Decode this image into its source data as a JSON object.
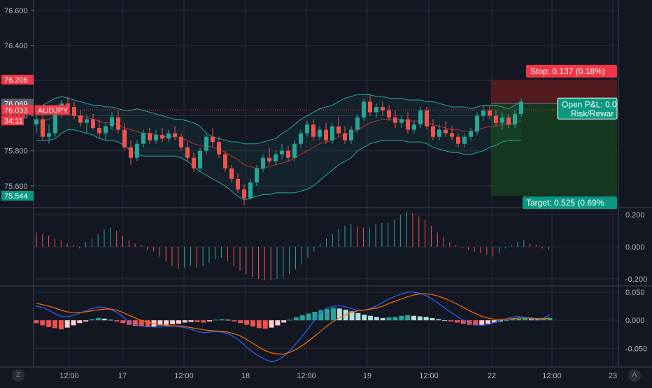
{
  "symbol": "AUDJPY",
  "countdown": "34:11",
  "colors": {
    "background": "#131722",
    "grid": "#2a2e39",
    "up": "#26a69a",
    "down": "#ef5350",
    "bb": "#26a69a",
    "ma": "#b2343a",
    "stop_zone": "#5c1b1f",
    "target_zone": "#163d1e"
  },
  "price_axis": {
    "ticks": [
      "76.600",
      "76.400",
      "76.200",
      "76.000",
      "75.800",
      "75.600"
    ],
    "tick_values": [
      76.6,
      76.4,
      76.2,
      76.0,
      75.8,
      75.6
    ],
    "range": [
      75.48,
      76.66
    ],
    "badges": [
      {
        "label": "76.206",
        "value": 76.206,
        "color": "#f23645"
      },
      {
        "label": "76.069",
        "value": 76.069,
        "color": "#5d606b"
      },
      {
        "label": "76.033",
        "value": 76.033,
        "color": "#f23645"
      },
      {
        "label": "75.544",
        "value": 75.544,
        "color": "#089981"
      }
    ]
  },
  "time_axis": {
    "labels": [
      "12:00",
      "17",
      "12:00",
      "18",
      "12:00",
      "19",
      "12:00",
      "22",
      "12:00",
      "23"
    ]
  },
  "position": {
    "stop_label": "Stop: 0.137 (0.18%)",
    "target_label": "Target: 0.525 (0.69%",
    "pnl_label": "Open P&L: 0.0",
    "rr_label": "Risk/Rewar",
    "entry": 76.069,
    "stop": 76.206,
    "target": 75.544
  },
  "osc1_axis": {
    "ticks": [
      "0.200",
      "0.000",
      "-0.200"
    ],
    "tick_values": [
      0.2,
      0.0,
      -0.2
    ],
    "range": [
      -0.24,
      0.24
    ]
  },
  "osc2_axis": {
    "ticks": [
      "0.050",
      "0.000",
      "-0.050"
    ],
    "tick_values": [
      0.05,
      0.0,
      -0.05
    ],
    "range": [
      -0.082,
      0.06
    ]
  },
  "corner_left": "Z",
  "corner_right": "A",
  "chart_data": [
    {
      "type": "candlestick",
      "symbol": "AUDJPY",
      "xlabel": "",
      "ylabel": "",
      "ylim": [
        75.48,
        76.66
      ],
      "candles": [
        [
          75.95,
          76.02,
          75.9,
          75.98
        ],
        [
          75.98,
          76.01,
          75.86,
          75.88
        ],
        [
          75.88,
          75.95,
          75.84,
          75.9
        ],
        [
          75.9,
          76.04,
          75.88,
          76.02
        ],
        [
          76.02,
          76.09,
          75.99,
          76.07
        ],
        [
          76.07,
          76.11,
          76.02,
          76.05
        ],
        [
          76.05,
          76.08,
          75.98,
          76.0
        ],
        [
          76.0,
          76.03,
          75.94,
          75.96
        ],
        [
          75.96,
          76.0,
          75.9,
          75.98
        ],
        [
          75.98,
          76.01,
          75.92,
          75.93
        ],
        [
          75.93,
          75.98,
          75.87,
          75.9
        ],
        [
          75.9,
          75.96,
          75.86,
          75.94
        ],
        [
          75.94,
          76.02,
          75.92,
          75.99
        ],
        [
          75.99,
          76.03,
          75.9,
          75.92
        ],
        [
          75.92,
          75.96,
          75.8,
          75.82
        ],
        [
          75.82,
          75.86,
          75.72,
          75.76
        ],
        [
          75.76,
          75.86,
          75.74,
          75.84
        ],
        [
          75.84,
          75.92,
          75.82,
          75.9
        ],
        [
          75.9,
          75.93,
          75.84,
          75.86
        ],
        [
          75.86,
          75.92,
          75.84,
          75.89
        ],
        [
          75.89,
          75.93,
          75.85,
          75.87
        ],
        [
          75.87,
          75.92,
          75.85,
          75.9
        ],
        [
          75.9,
          75.94,
          75.86,
          75.88
        ],
        [
          75.88,
          75.9,
          75.8,
          75.82
        ],
        [
          75.82,
          75.85,
          75.74,
          75.76
        ],
        [
          75.76,
          75.79,
          75.68,
          75.7
        ],
        [
          75.7,
          75.82,
          75.68,
          75.8
        ],
        [
          75.8,
          75.9,
          75.78,
          75.88
        ],
        [
          75.88,
          75.93,
          75.82,
          75.85
        ],
        [
          75.85,
          75.88,
          75.76,
          75.78
        ],
        [
          75.78,
          75.8,
          75.68,
          75.7
        ],
        [
          75.7,
          75.72,
          75.62,
          75.64
        ],
        [
          75.64,
          75.67,
          75.56,
          75.58
        ],
        [
          75.58,
          75.61,
          75.49,
          75.53
        ],
        [
          75.53,
          75.64,
          75.52,
          75.62
        ],
        [
          75.62,
          75.72,
          75.6,
          75.7
        ],
        [
          75.7,
          75.78,
          75.68,
          75.76
        ],
        [
          75.76,
          75.82,
          75.72,
          75.74
        ],
        [
          75.74,
          75.8,
          75.72,
          75.78
        ],
        [
          75.78,
          75.84,
          75.75,
          75.8
        ],
        [
          75.8,
          75.83,
          75.74,
          75.76
        ],
        [
          75.76,
          75.86,
          75.74,
          75.84
        ],
        [
          75.84,
          75.92,
          75.82,
          75.9
        ],
        [
          75.9,
          75.97,
          75.88,
          75.95
        ],
        [
          75.95,
          75.98,
          75.86,
          75.88
        ],
        [
          75.88,
          75.94,
          75.86,
          75.92
        ],
        [
          75.92,
          75.96,
          75.84,
          75.86
        ],
        [
          75.86,
          75.96,
          75.84,
          75.94
        ],
        [
          75.94,
          75.99,
          75.88,
          75.9
        ],
        [
          75.9,
          75.94,
          75.84,
          75.86
        ],
        [
          75.86,
          75.94,
          75.84,
          75.92
        ],
        [
          75.92,
          76.01,
          75.9,
          75.99
        ],
        [
          75.99,
          76.1,
          75.97,
          76.08
        ],
        [
          76.08,
          76.12,
          76.0,
          76.02
        ],
        [
          76.02,
          76.07,
          75.99,
          76.05
        ],
        [
          76.05,
          76.08,
          76.0,
          76.03
        ],
        [
          76.03,
          76.06,
          75.97,
          75.99
        ],
        [
          75.99,
          76.03,
          75.93,
          75.96
        ],
        [
          75.96,
          76.0,
          75.93,
          75.98
        ],
        [
          75.98,
          76.02,
          75.9,
          75.92
        ],
        [
          75.92,
          75.97,
          75.9,
          75.95
        ],
        [
          75.95,
          76.05,
          75.93,
          76.03
        ],
        [
          76.03,
          76.05,
          75.92,
          75.94
        ],
        [
          75.94,
          75.98,
          75.86,
          75.88
        ],
        [
          75.88,
          75.95,
          75.86,
          75.92
        ],
        [
          75.92,
          75.97,
          75.88,
          75.9
        ],
        [
          75.9,
          75.94,
          75.86,
          75.88
        ],
        [
          75.88,
          75.9,
          75.82,
          75.84
        ],
        [
          75.84,
          75.9,
          75.82,
          75.88
        ],
        [
          75.88,
          75.93,
          75.86,
          75.91
        ],
        [
          75.91,
          76.02,
          75.89,
          76.0
        ],
        [
          76.0,
          76.06,
          75.97,
          76.03
        ],
        [
          76.03,
          76.06,
          75.98,
          76.0
        ],
        [
          76.0,
          76.03,
          75.94,
          75.96
        ],
        [
          75.96,
          76.02,
          75.92,
          75.99
        ],
        [
          75.99,
          76.01,
          75.93,
          75.95
        ],
        [
          75.95,
          76.03,
          75.93,
          76.01
        ],
        [
          76.01,
          76.1,
          75.99,
          76.08
        ]
      ],
      "bollinger": {
        "upper": [
          76.04,
          76.06,
          76.08,
          76.1,
          76.11,
          76.1,
          76.09,
          76.08,
          76.07,
          76.06,
          76.06,
          76.05,
          76.05,
          76.04,
          76.03,
          76.03,
          76.04,
          76.03,
          76.02,
          76.01,
          76.0,
          75.99,
          75.98,
          75.98,
          75.97,
          75.96,
          75.94,
          75.9,
          75.88,
          75.87,
          75.86,
          75.85,
          75.85,
          75.84,
          75.84,
          75.84,
          75.85,
          75.86,
          75.87,
          75.9,
          75.92,
          75.95,
          75.98,
          76.0,
          76.02,
          76.04,
          76.05,
          76.06,
          76.08,
          76.1,
          76.11,
          76.12,
          76.12,
          76.12,
          76.11,
          76.11,
          76.1,
          76.1,
          76.1,
          76.09,
          76.09,
          76.09,
          76.08,
          76.08,
          76.07,
          76.06,
          76.05,
          76.05,
          76.05,
          76.04,
          76.05,
          76.06,
          76.06,
          76.06,
          76.05,
          76.04,
          76.06,
          76.08
        ],
        "middle": [
          75.96,
          75.97,
          75.98,
          76.0,
          76.01,
          76.01,
          76.0,
          76.0,
          75.99,
          75.98,
          75.97,
          75.96,
          75.96,
          75.95,
          75.93,
          75.92,
          75.91,
          75.9,
          75.9,
          75.89,
          75.88,
          75.88,
          75.88,
          75.87,
          75.86,
          75.84,
          75.83,
          75.83,
          75.82,
          75.81,
          75.79,
          75.77,
          75.75,
          75.72,
          75.71,
          75.7,
          75.7,
          75.71,
          75.72,
          75.73,
          75.74,
          75.76,
          75.78,
          75.8,
          75.82,
          75.84,
          75.85,
          75.86,
          75.88,
          75.89,
          75.9,
          75.92,
          75.94,
          75.96,
          75.97,
          75.98,
          75.98,
          75.98,
          75.98,
          75.97,
          75.97,
          75.97,
          75.96,
          75.95,
          75.94,
          75.93,
          75.92,
          75.92,
          75.91,
          75.91,
          75.92,
          75.93,
          75.94,
          75.94,
          75.95,
          75.95,
          75.96,
          75.97
        ],
        "lower": [
          75.86,
          75.86,
          75.86,
          75.87,
          75.9,
          75.92,
          75.92,
          75.91,
          75.9,
          75.89,
          75.87,
          75.86,
          75.86,
          75.85,
          75.83,
          75.8,
          75.78,
          75.77,
          75.77,
          75.77,
          75.77,
          75.77,
          75.77,
          75.76,
          75.74,
          75.71,
          75.68,
          75.66,
          75.64,
          75.62,
          75.6,
          75.57,
          75.54,
          75.52,
          75.53,
          75.54,
          75.55,
          75.55,
          75.56,
          75.56,
          75.56,
          75.56,
          75.57,
          75.58,
          75.6,
          75.63,
          75.66,
          75.69,
          75.72,
          75.74,
          75.76,
          75.8,
          75.82,
          75.84,
          75.85,
          75.86,
          75.86,
          75.86,
          75.86,
          75.85,
          75.85,
          75.85,
          75.84,
          75.82,
          75.81,
          75.8,
          75.79,
          75.79,
          75.78,
          75.78,
          75.79,
          75.8,
          75.82,
          75.83,
          75.85,
          75.86,
          75.86,
          75.86
        ]
      }
    },
    {
      "type": "bar",
      "title": "",
      "ylim": [
        -0.24,
        0.24
      ],
      "values": [
        0.09,
        0.08,
        0.07,
        0.05,
        0.04,
        0.02,
        0.01,
        -0.01,
        0.03,
        0.05,
        0.08,
        0.11,
        0.12,
        0.1,
        0.07,
        0.04,
        0.02,
        0.01,
        -0.02,
        -0.03,
        -0.06,
        -0.09,
        -0.12,
        -0.14,
        -0.13,
        -0.12,
        -0.13,
        -0.12,
        -0.1,
        -0.08,
        -0.07,
        -0.09,
        -0.12,
        -0.15,
        -0.17,
        -0.19,
        -0.2,
        -0.21,
        -0.21,
        -0.2,
        -0.19,
        -0.17,
        -0.14,
        -0.11,
        -0.07,
        -0.03,
        0.02,
        0.05,
        0.08,
        0.11,
        0.13,
        0.14,
        0.13,
        0.12,
        0.12,
        0.14,
        0.15,
        0.15,
        0.17,
        0.2,
        0.22,
        0.21,
        0.19,
        0.17,
        0.13,
        0.09,
        0.06,
        0.03,
        0.01,
        -0.01,
        -0.02,
        -0.03,
        -0.04,
        -0.05,
        -0.06,
        -0.04,
        -0.01,
        0.01,
        0.03,
        0.04,
        0.02,
        0.01,
        -0.01,
        -0.02
      ],
      "colors": [
        "down",
        "down",
        "down",
        "down",
        "down",
        "down",
        "down",
        "down",
        "up",
        "up",
        "up",
        "up",
        "up",
        "down",
        "down",
        "down",
        "down",
        "down",
        "down",
        "down",
        "down",
        "down",
        "down",
        "down",
        "up",
        "up",
        "down",
        "up",
        "up",
        "up",
        "up",
        "down",
        "down",
        "down",
        "down",
        "down",
        "down",
        "down",
        "down",
        "up",
        "up",
        "up",
        "up",
        "up",
        "up",
        "up",
        "up",
        "up",
        "up",
        "up",
        "up",
        "up",
        "down",
        "down",
        "up",
        "up",
        "up",
        "up",
        "up",
        "up",
        "up",
        "down",
        "down",
        "down",
        "down",
        "down",
        "down",
        "down",
        "down",
        "down",
        "down",
        "down",
        "down",
        "down",
        "down",
        "up",
        "up",
        "up",
        "up",
        "up",
        "down",
        "down",
        "down",
        "down"
      ]
    },
    {
      "type": "bar",
      "title": "",
      "ylim": [
        -0.082,
        0.06
      ],
      "histogram": [
        -0.005,
        -0.009,
        -0.012,
        -0.014,
        -0.016,
        -0.013,
        -0.009,
        -0.005,
        -0.002,
        0.002,
        0.004,
        0.003,
        0.001,
        -0.002,
        -0.005,
        -0.008,
        -0.01,
        -0.011,
        -0.012,
        -0.011,
        -0.009,
        -0.008,
        -0.007,
        -0.006,
        -0.004,
        -0.003,
        -0.003,
        -0.004,
        -0.002,
        0.001,
        0.002,
        0.001,
        -0.002,
        -0.005,
        -0.008,
        -0.011,
        -0.014,
        -0.015,
        -0.013,
        -0.009,
        -0.004,
        0.001,
        0.005,
        0.009,
        0.012,
        0.015,
        0.018,
        0.02,
        0.022,
        0.021,
        0.019,
        0.016,
        0.013,
        0.01,
        0.008,
        0.006,
        0.004,
        0.005,
        0.006,
        0.008,
        0.009,
        0.008,
        0.007,
        0.006,
        0.004,
        0.002,
        0.0,
        -0.002,
        -0.004,
        -0.006,
        -0.008,
        -0.009,
        -0.008,
        -0.006,
        -0.004,
        -0.002,
        0.0,
        0.002,
        0.003,
        0.004,
        0.003,
        0.002,
        0.003,
        0.004
      ],
      "macd": [
        0.025,
        0.023,
        0.018,
        0.012,
        0.007,
        0.006,
        0.009,
        0.013,
        0.017,
        0.021,
        0.024,
        0.023,
        0.02,
        0.014,
        0.006,
        -0.003,
        -0.008,
        -0.01,
        -0.011,
        -0.012,
        -0.012,
        -0.011,
        -0.01,
        -0.011,
        -0.013,
        -0.016,
        -0.02,
        -0.022,
        -0.021,
        -0.02,
        -0.021,
        -0.024,
        -0.03,
        -0.038,
        -0.048,
        -0.057,
        -0.064,
        -0.07,
        -0.074,
        -0.071,
        -0.064,
        -0.054,
        -0.041,
        -0.028,
        -0.014,
        0.001,
        0.014,
        0.022,
        0.025,
        0.026,
        0.024,
        0.021,
        0.017,
        0.018,
        0.021,
        0.026,
        0.032,
        0.038,
        0.043,
        0.047,
        0.05,
        0.05,
        0.048,
        0.044,
        0.038,
        0.03,
        0.022,
        0.014,
        0.007,
        0.0,
        -0.005,
        -0.008,
        -0.009,
        -0.008,
        -0.004,
        0.0,
        0.003,
        0.006,
        0.007,
        0.005,
        0.002,
        0.0,
        0.004,
        0.01
      ],
      "signal": [
        0.03,
        0.028,
        0.025,
        0.022,
        0.018,
        0.015,
        0.014,
        0.014,
        0.015,
        0.017,
        0.019,
        0.02,
        0.02,
        0.018,
        0.014,
        0.009,
        0.004,
        0.0,
        -0.003,
        -0.006,
        -0.008,
        -0.009,
        -0.01,
        -0.01,
        -0.011,
        -0.013,
        -0.015,
        -0.017,
        -0.018,
        -0.019,
        -0.02,
        -0.021,
        -0.024,
        -0.028,
        -0.034,
        -0.041,
        -0.048,
        -0.054,
        -0.058,
        -0.06,
        -0.06,
        -0.057,
        -0.052,
        -0.045,
        -0.037,
        -0.028,
        -0.019,
        -0.01,
        -0.002,
        0.005,
        0.01,
        0.014,
        0.017,
        0.018,
        0.02,
        0.022,
        0.025,
        0.03,
        0.034,
        0.038,
        0.042,
        0.045,
        0.047,
        0.047,
        0.046,
        0.043,
        0.039,
        0.034,
        0.029,
        0.023,
        0.017,
        0.012,
        0.007,
        0.004,
        0.002,
        0.001,
        0.002,
        0.003,
        0.004,
        0.004,
        0.004,
        0.003,
        0.003,
        0.004
      ]
    }
  ]
}
